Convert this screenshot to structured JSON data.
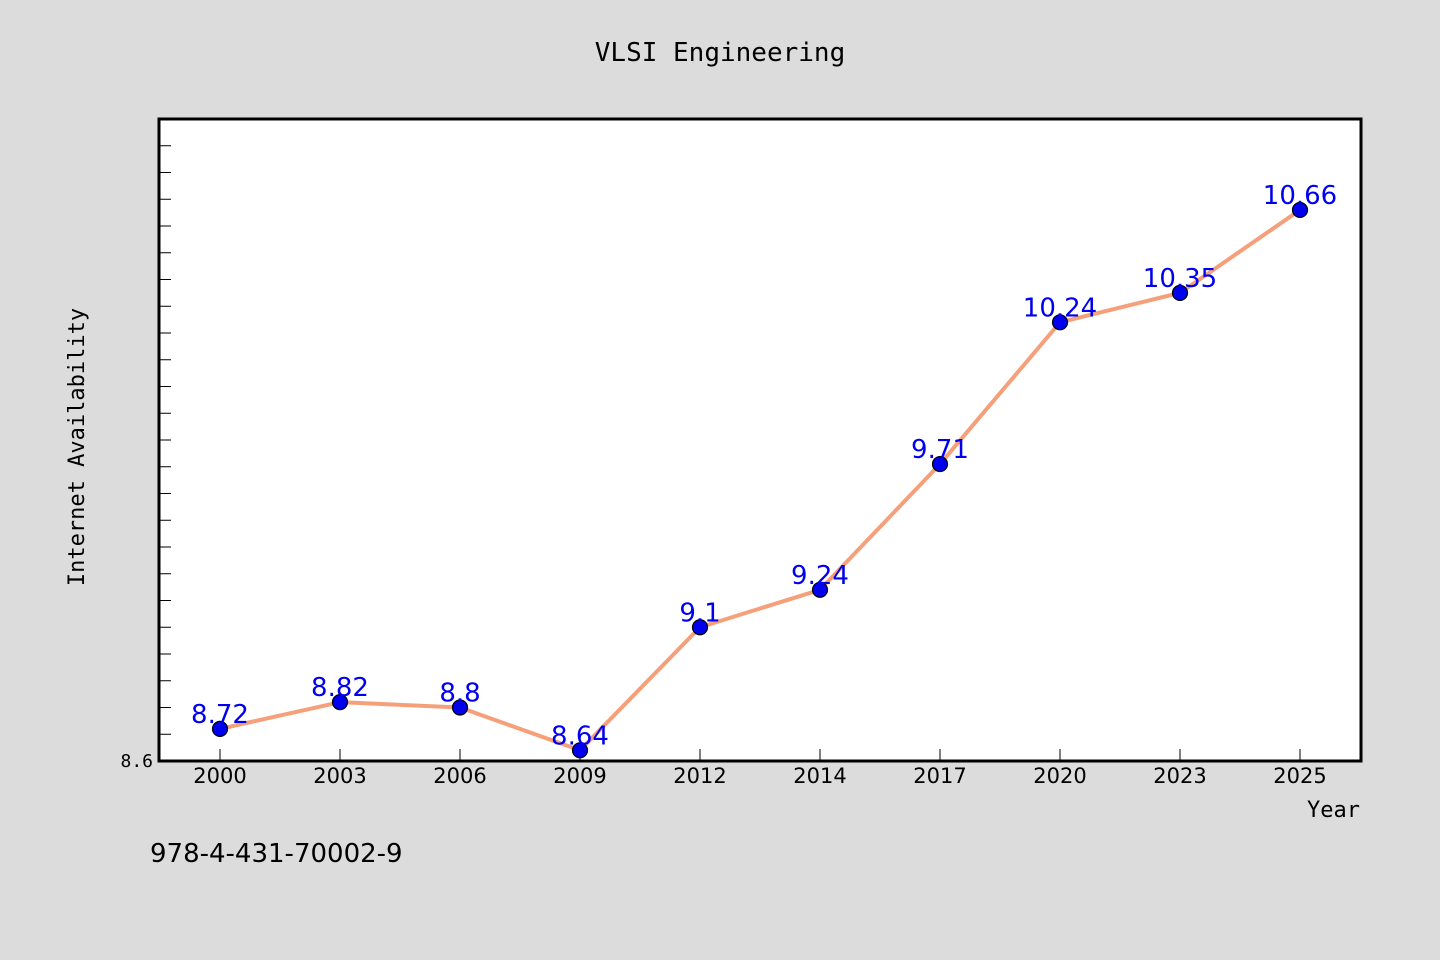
{
  "chart_data": {
    "type": "line",
    "title": "VLSI Engineering",
    "xlabel": "Year",
    "ylabel": "Internet Availability",
    "categories": [
      "2000",
      "2003",
      "2006",
      "2009",
      "2012",
      "2014",
      "2017",
      "2020",
      "2023",
      "2025"
    ],
    "series": [
      {
        "values": [
          8.72,
          8.82,
          8.8,
          8.64,
          9.1,
          9.24,
          9.71,
          10.24,
          10.35,
          10.66
        ],
        "data_labels": [
          "8.72",
          "8.82",
          "8.8",
          "8.64",
          "9.1",
          "9.24",
          "9.71",
          "10.24",
          "10.35",
          "10.66"
        ],
        "line_color": "#f5a07a",
        "marker_color": "#0000ee",
        "label_color": "#0000ee"
      }
    ],
    "ylim": [
      8.6,
      11.0
    ],
    "y_tick_labels": [
      {
        "value": 8.6,
        "label": "8.6"
      }
    ],
    "y_minor_step": 0.1,
    "grid": false,
    "annotation": "978-4-431-70002-9"
  }
}
